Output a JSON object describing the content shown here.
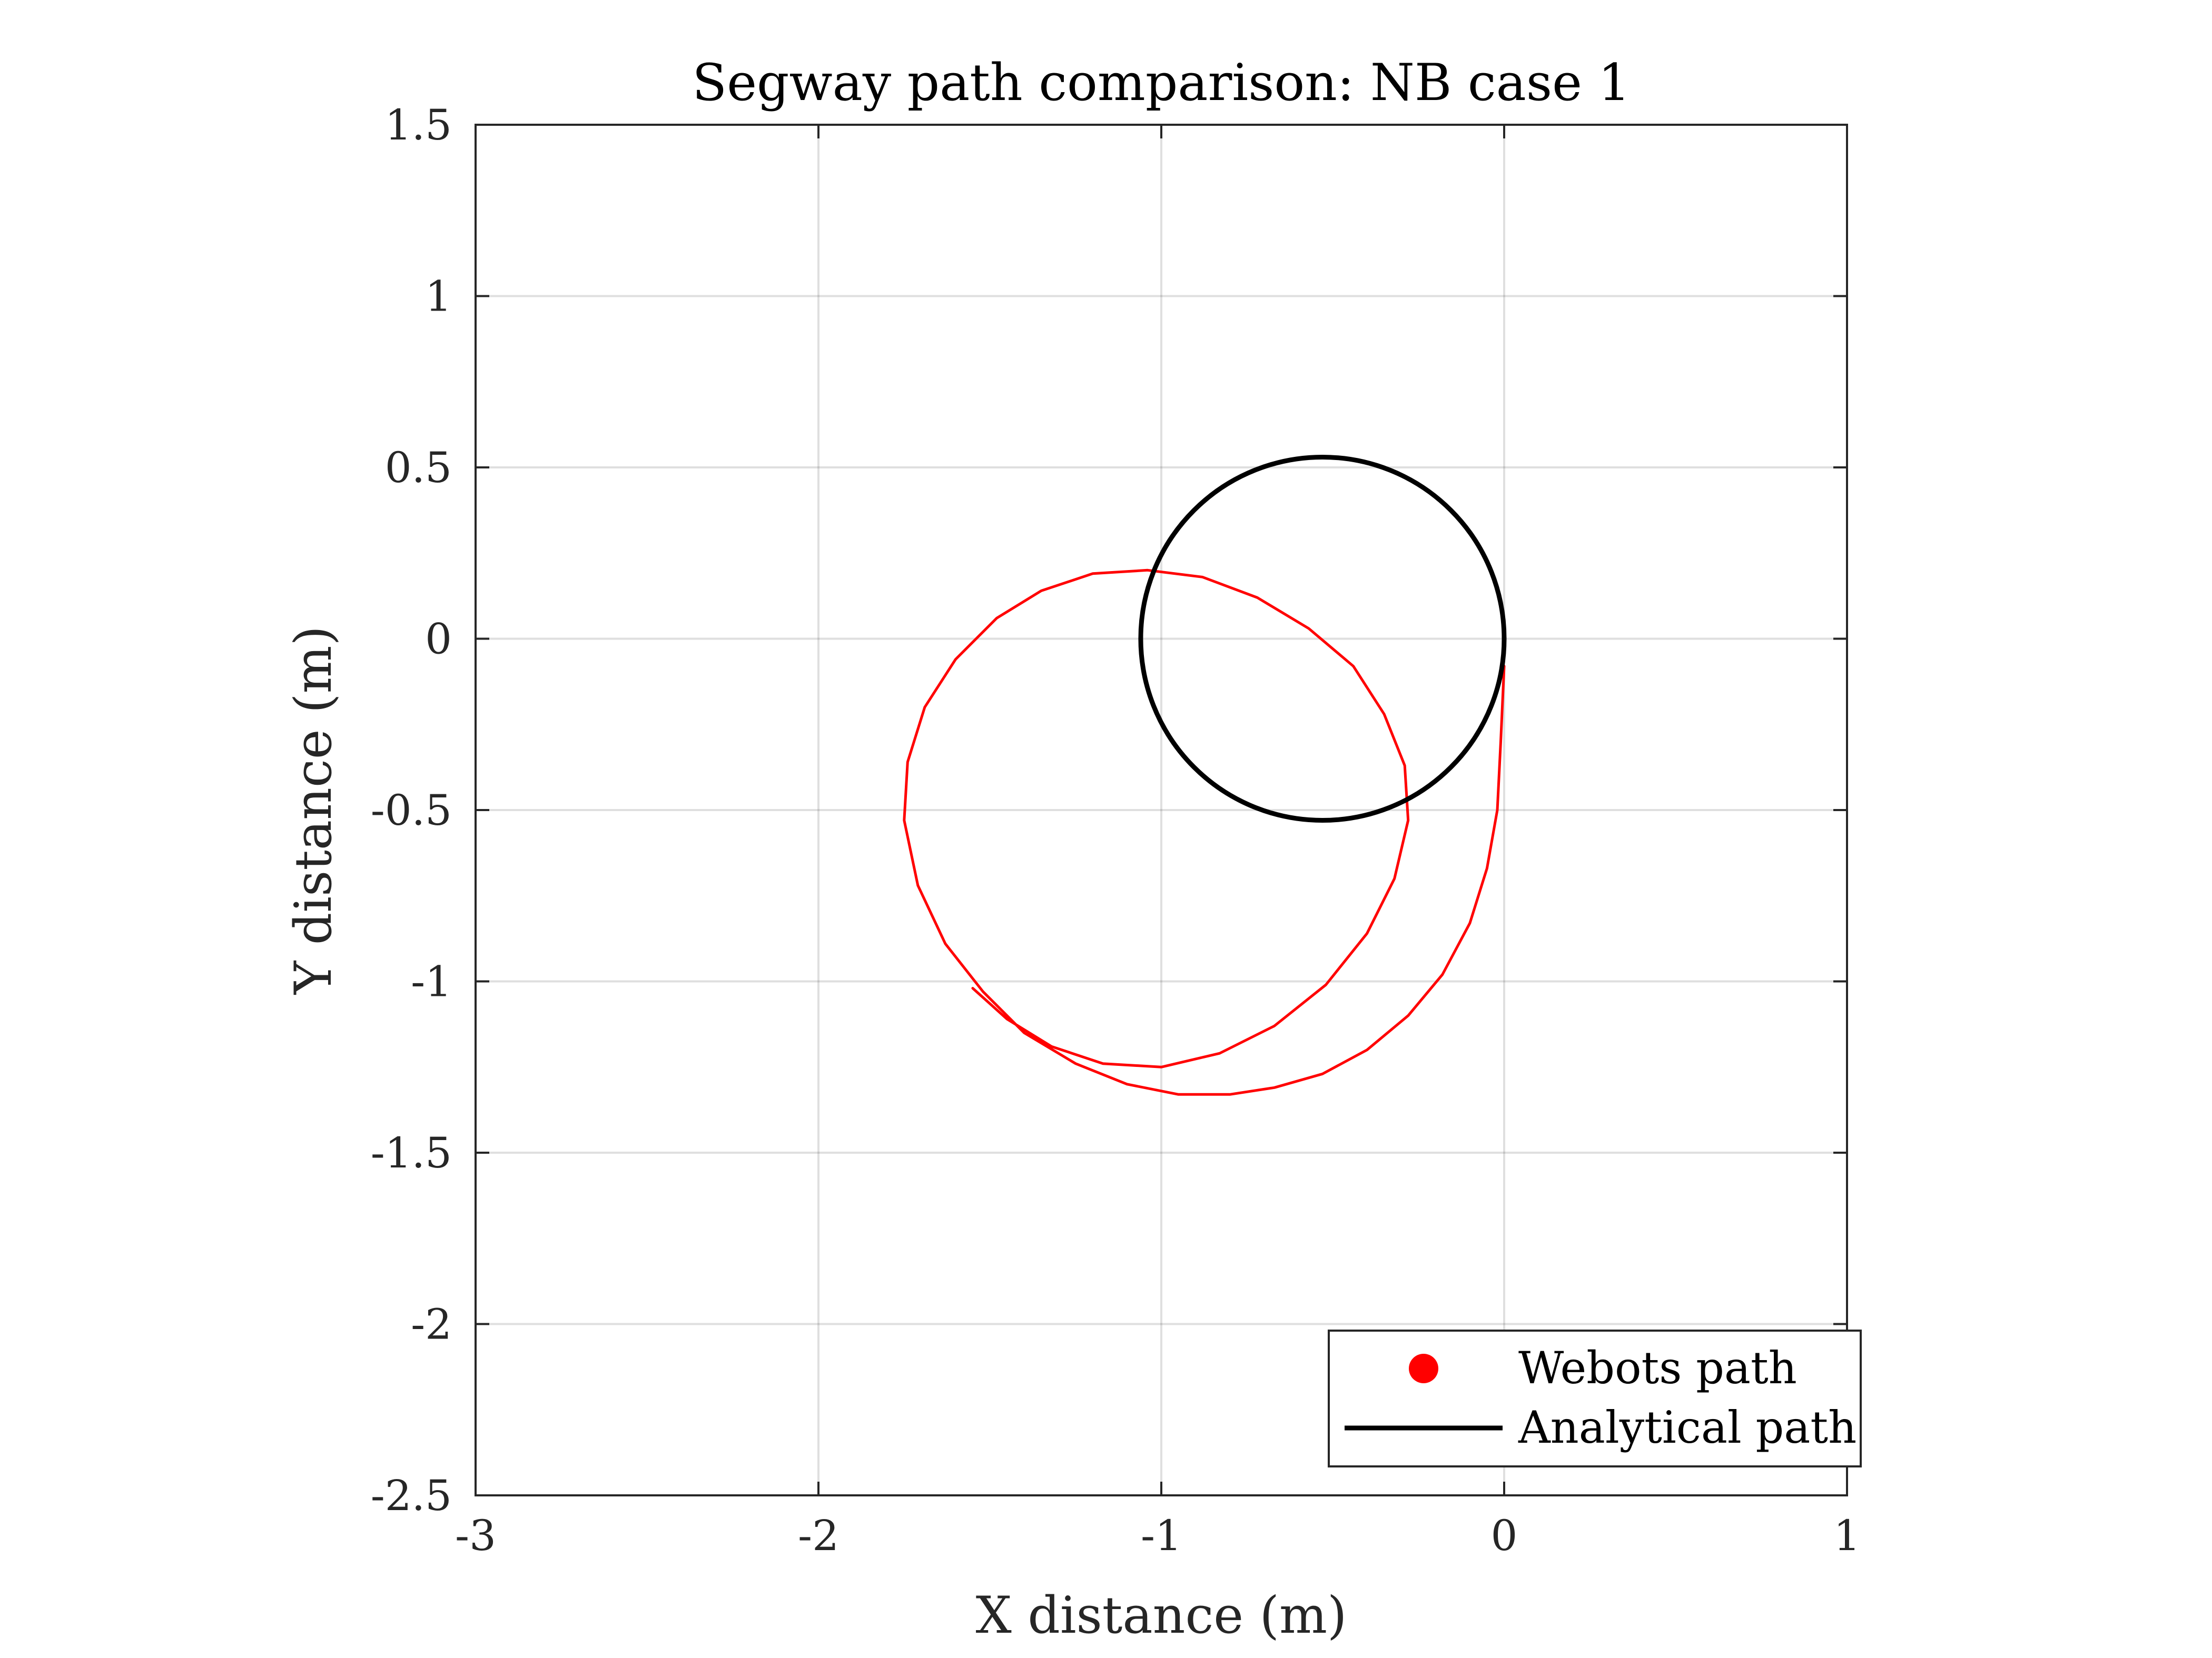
{
  "chart_data": {
    "type": "line",
    "title": "Segway path comparison: NB case 1",
    "xlabel": "X distance (m)",
    "ylabel": "Y distance (m)",
    "xlim": [
      -3,
      1
    ],
    "ylim": [
      -2.5,
      1.5
    ],
    "xticks": [
      -3,
      -2,
      -1,
      0,
      1
    ],
    "yticks": [
      1.5,
      1,
      0.5,
      0,
      -0.5,
      -1,
      -1.5,
      -2,
      -2.5
    ],
    "xtick_labels": [
      "-3",
      "-2",
      "-1",
      "0",
      "1"
    ],
    "ytick_labels": [
      "1.5",
      "1",
      "0.5",
      "0",
      "-0.5",
      "-1",
      "-1.5",
      "-2",
      "-2.5"
    ],
    "grid": true,
    "legend_position": "bottom-right",
    "series": [
      {
        "name": "Webots path",
        "color": "#ff0000",
        "marker": "dot",
        "x": [
          0.0,
          -0.01,
          -0.02,
          -0.05,
          -0.1,
          -0.18,
          -0.28,
          -0.4,
          -0.53,
          -0.67,
          -0.8,
          -0.95,
          -1.1,
          -1.25,
          -1.4,
          -1.52,
          -1.63,
          -1.71,
          -1.75,
          -1.74,
          -1.69,
          -1.6,
          -1.48,
          -1.35,
          -1.2,
          -1.04,
          -0.88,
          -0.72,
          -0.57,
          -0.44,
          -0.35,
          -0.29,
          -0.28,
          -0.32,
          -0.4,
          -0.52,
          -0.67,
          -0.83,
          -1.0,
          -1.17,
          -1.32,
          -1.45,
          -1.55
        ],
        "y": [
          -0.08,
          -0.3,
          -0.5,
          -0.67,
          -0.83,
          -0.98,
          -1.1,
          -1.2,
          -1.27,
          -1.31,
          -1.33,
          -1.33,
          -1.3,
          -1.24,
          -1.15,
          -1.03,
          -0.89,
          -0.72,
          -0.53,
          -0.36,
          -0.2,
          -0.06,
          0.06,
          0.14,
          0.19,
          0.2,
          0.18,
          0.12,
          0.03,
          -0.08,
          -0.22,
          -0.37,
          -0.53,
          -0.7,
          -0.86,
          -1.01,
          -1.13,
          -1.21,
          -1.25,
          -1.24,
          -1.19,
          -1.11,
          -1.02
        ]
      },
      {
        "name": "Analytical path",
        "color": "#000000",
        "marker": "line",
        "center": [
          -0.53,
          0
        ],
        "radius": 0.53
      }
    ]
  }
}
